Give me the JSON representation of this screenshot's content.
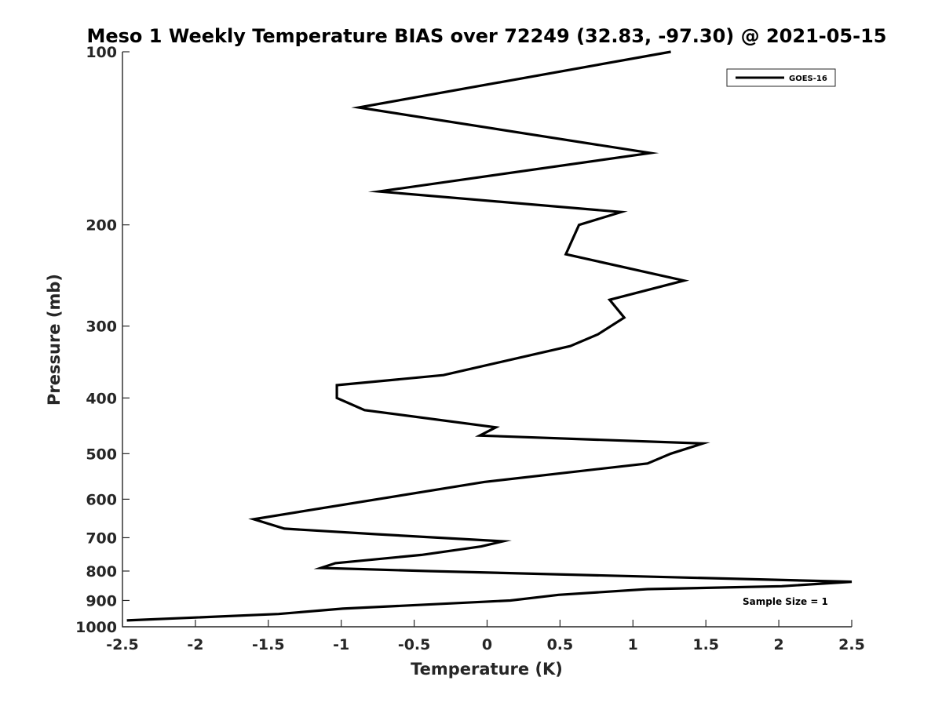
{
  "chart_data": {
    "type": "line",
    "title": "Meso 1 Weekly Temperature BIAS over 72249 (32.83, -97.30) @ 2021-05-15",
    "xlabel": "Temperature (K)",
    "ylabel": "Pressure (mb)",
    "xlim": [
      -2.5,
      2.5
    ],
    "ylim": [
      100,
      1000
    ],
    "y_scale": "log",
    "y_reversed": true,
    "x_ticks": [
      -2.5,
      -2,
      -1.5,
      -1,
      -0.5,
      0,
      0.5,
      1,
      1.5,
      2,
      2.5
    ],
    "x_tick_labels": [
      "-2.5",
      "-2",
      "-1.5",
      "-1",
      "-0.5",
      "0",
      "0.5",
      "1",
      "1.5",
      "2",
      "2.5"
    ],
    "y_ticks": [
      100,
      200,
      300,
      400,
      500,
      600,
      700,
      800,
      900,
      1000
    ],
    "y_tick_labels": [
      "100",
      "200",
      "300",
      "400",
      "500",
      "600",
      "700",
      "800",
      "900",
      "1000"
    ],
    "grid": false,
    "legend_position": "top-right",
    "annotation": "Sample Size = 1",
    "series": [
      {
        "name": "GOES-16",
        "color": "#000000",
        "x": [
          1.26,
          -0.88,
          1.12,
          -0.74,
          0.92,
          0.63,
          0.54,
          1.35,
          0.84,
          0.94,
          0.76,
          0.57,
          -0.3,
          -1.03,
          -1.03,
          -0.84,
          0.06,
          -0.05,
          1.48,
          1.26,
          1.1,
          -0.02,
          -1.6,
          -1.39,
          -0.77,
          0.11,
          -0.04,
          -0.45,
          -1.04,
          -1.14,
          -0.4,
          2.5,
          2.02,
          1.1,
          0.49,
          0.16,
          -0.99,
          -1.43,
          -2.47
        ],
        "y": [
          100,
          125,
          150,
          175,
          190,
          200,
          225,
          250,
          270,
          290,
          310,
          325,
          365,
          380,
          400,
          420,
          450,
          465,
          480,
          500,
          520,
          560,
          650,
          675,
          690,
          710,
          725,
          750,
          775,
          790,
          800,
          835,
          850,
          860,
          880,
          900,
          930,
          950,
          975
        ]
      }
    ]
  }
}
